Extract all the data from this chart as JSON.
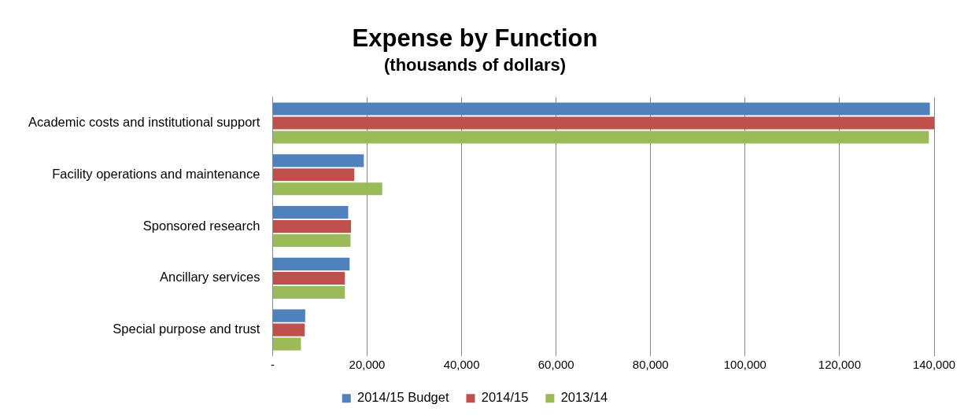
{
  "chart_data": {
    "type": "bar",
    "orientation": "horizontal",
    "title": "Expense by Function",
    "subtitle": "(thousands of dollars)",
    "categories": [
      "Academic costs and institutional support",
      "Facility operations and maintenance",
      "Sponsored research",
      "Ancillary services",
      "Special purpose and trust"
    ],
    "series": [
      {
        "name": "2014/15 Budget",
        "color": "#4f81bd",
        "values": [
          139100,
          19300,
          16000,
          16300,
          6900
        ]
      },
      {
        "name": "2014/15",
        "color": "#c0504d",
        "values": [
          140000,
          17300,
          16600,
          15300,
          6800
        ]
      },
      {
        "name": "2013/14",
        "color": "#9bbb59",
        "values": [
          138900,
          23200,
          16500,
          15300,
          6000
        ]
      }
    ],
    "xlim": [
      0,
      140000
    ],
    "xticks": [
      {
        "value": 0,
        "label": "-"
      },
      {
        "value": 20000,
        "label": "20,000"
      },
      {
        "value": 40000,
        "label": "40,000"
      },
      {
        "value": 60000,
        "label": "60,000"
      },
      {
        "value": 80000,
        "label": "80,000"
      },
      {
        "value": 100000,
        "label": "100,000"
      },
      {
        "value": 120000,
        "label": "120,000"
      },
      {
        "value": 140000,
        "label": "140,000"
      }
    ],
    "grid": "x",
    "legend": "bottom"
  }
}
